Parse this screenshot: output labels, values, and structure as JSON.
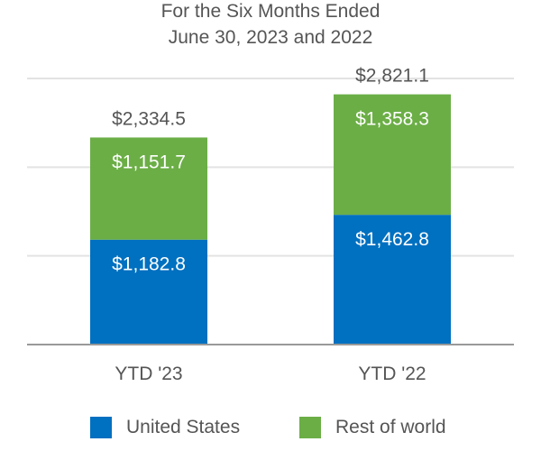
{
  "chart_data": {
    "type": "bar",
    "stacked": true,
    "title": [
      "For the Six Months Ended",
      "June 30, 2023 and 2022"
    ],
    "categories": [
      "YTD '23",
      "YTD '22"
    ],
    "series": [
      {
        "name": "United States",
        "values": [
          1182.8,
          1462.8
        ],
        "labels": [
          "$1,182.8",
          "$1,462.8"
        ],
        "color": "#0070C0"
      },
      {
        "name": "Rest of world",
        "values": [
          1151.7,
          1358.3
        ],
        "labels": [
          "$1,151.7",
          "$1,358.3"
        ],
        "color": "#6BAE46"
      }
    ],
    "totals": [
      2334.5,
      2821.1
    ],
    "total_labels": [
      "$2,334.5",
      "$2,821.1"
    ],
    "ylim": [
      0,
      3000
    ],
    "gridlines": [
      1000,
      2000,
      3000
    ],
    "grid": true,
    "legend_position": "bottom"
  }
}
